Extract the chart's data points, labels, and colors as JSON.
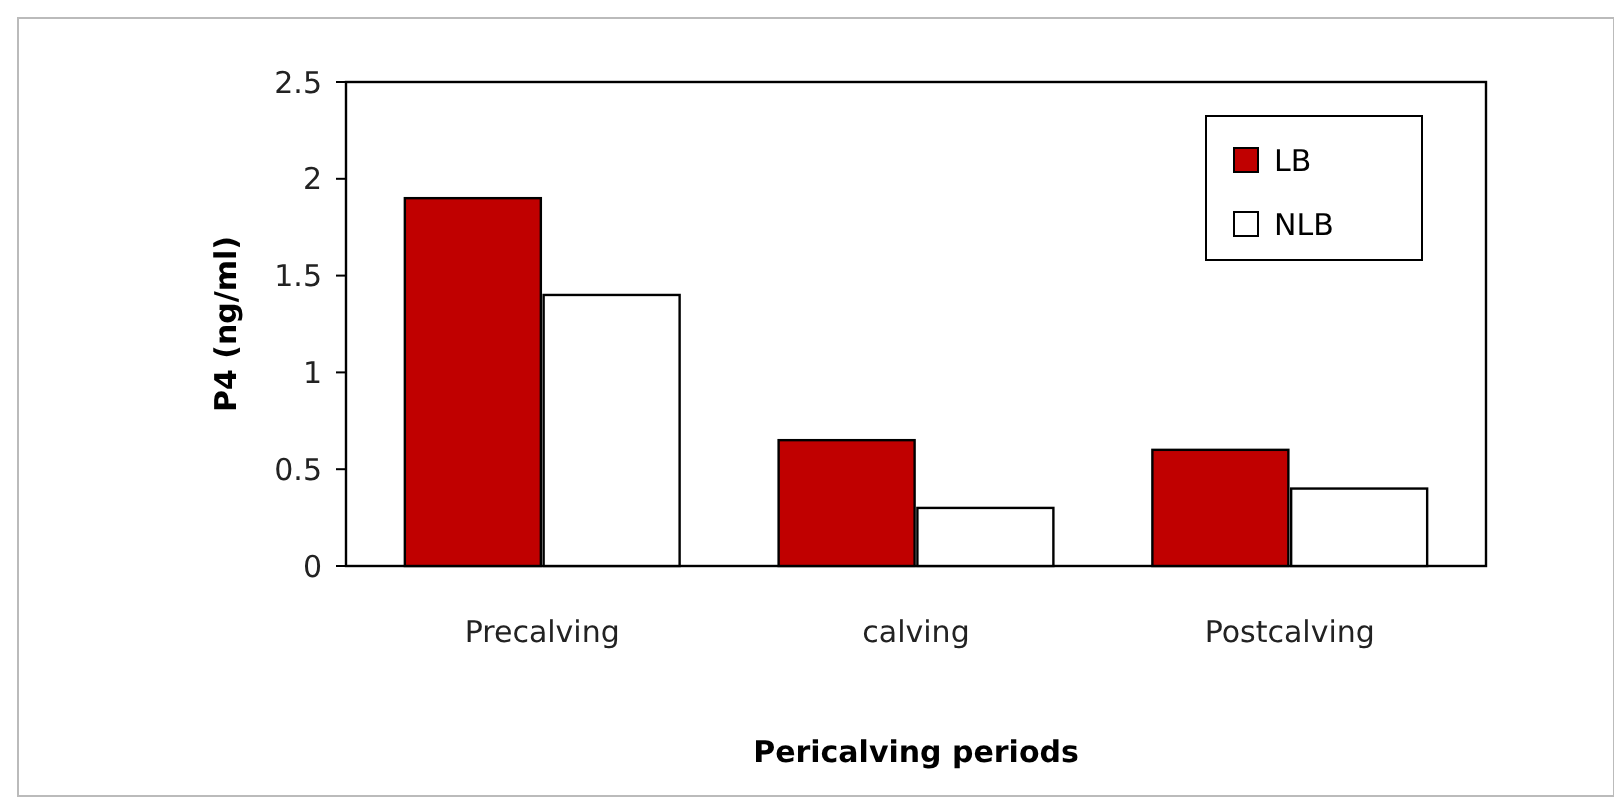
{
  "chart_data": {
    "type": "bar",
    "xlabel": "Pericalving periods",
    "ylabel": "P4 (ng/ml)",
    "categories": [
      "Precalving",
      "calving",
      "Postcalving"
    ],
    "series": [
      {
        "name": "LB",
        "color": "#c00000",
        "values": [
          1.9,
          0.65,
          0.6
        ]
      },
      {
        "name": "NLB",
        "color": "#ffffff",
        "values": [
          1.4,
          0.3,
          0.4
        ]
      }
    ],
    "ylim": [
      0,
      2.5
    ],
    "yticks": [
      0,
      0.5,
      1,
      1.5,
      2,
      2.5
    ],
    "grid": false,
    "legend": "top right"
  }
}
